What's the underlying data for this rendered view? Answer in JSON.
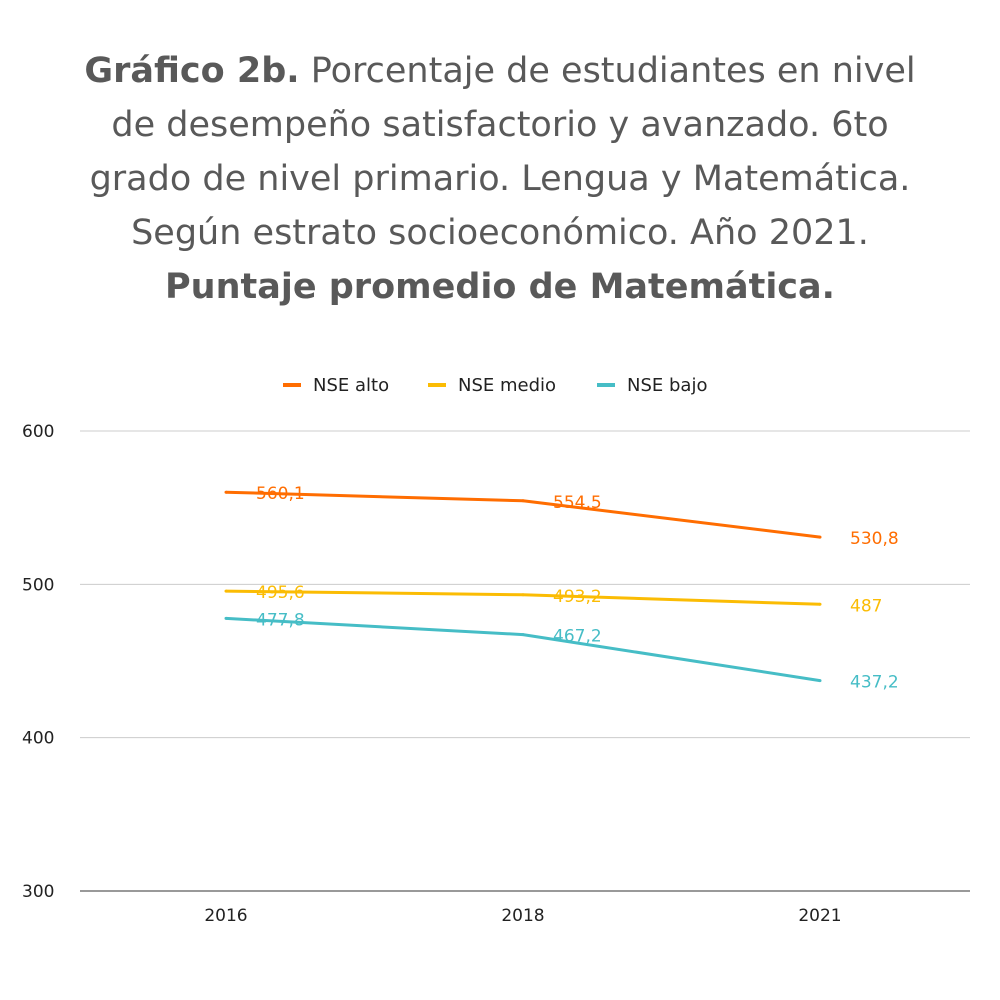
{
  "title": {
    "bold_prefix": "Gráfico 2b.",
    "line1_rest": "Porcentaje de estudiantes en nivel",
    "line2": "de desempeño satisfactorio y avanzado. 6to",
    "line3": "grado de nivel primario. Lengua y Matemática.",
    "line4": "Según estrato socioeconómico. Año 2021.",
    "line5_bold": "Puntaje promedio de Matemática."
  },
  "chart_data": {
    "type": "line",
    "title": "",
    "xlabel": "",
    "ylabel": "",
    "categories": [
      "2016",
      "2018",
      "2021"
    ],
    "ylim": [
      300,
      600
    ],
    "yticks": [
      "600",
      "500",
      "400",
      "300"
    ],
    "ytick_values": [
      600,
      500,
      400,
      300
    ],
    "grid": true,
    "legend_position": "top-center",
    "series": [
      {
        "name": "NSE alto",
        "color": "#FF6D01",
        "values": [
          560.1,
          554.5,
          530.8
        ],
        "labels": [
          "560,1",
          "554,5",
          "530,8"
        ]
      },
      {
        "name": "NSE medio",
        "color": "#FBBC04",
        "values": [
          495.6,
          493.2,
          487
        ],
        "labels": [
          "495,6",
          "493,2",
          "487"
        ]
      },
      {
        "name": "NSE bajo",
        "color": "#46BDC6",
        "values": [
          477.8,
          467.2,
          437.2
        ],
        "labels": [
          "477,8",
          "467,2",
          "437,2"
        ]
      }
    ]
  }
}
